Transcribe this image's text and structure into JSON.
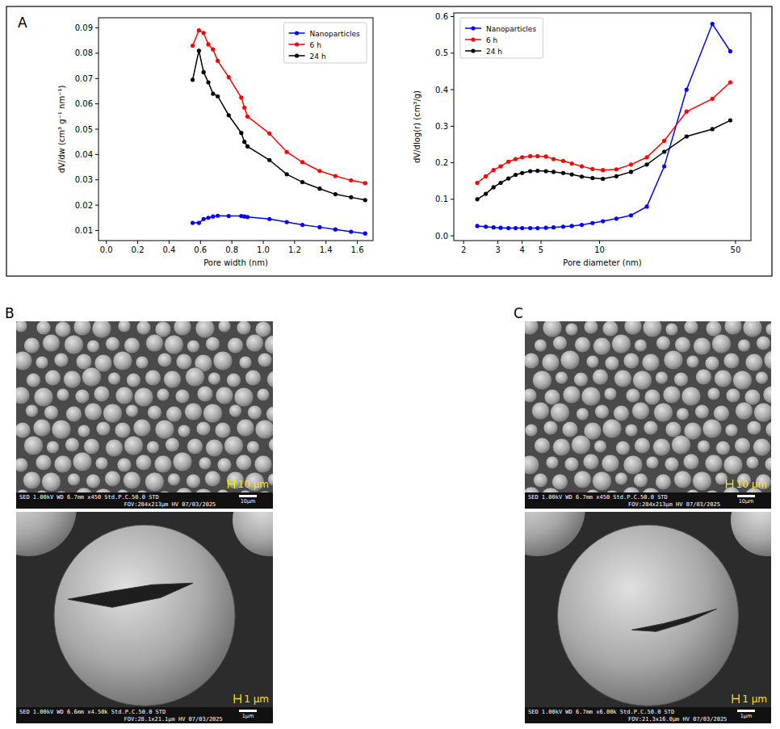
{
  "chart_data": [
    {
      "type": "line",
      "x_label": "Pore width (nm)",
      "y_label": "dV/dw (cm³ g⁻¹ nm⁻¹)",
      "x": [
        0.55,
        0.59,
        0.62,
        0.65,
        0.68,
        0.71,
        0.78,
        0.86,
        0.88,
        0.9,
        1.04,
        1.15,
        1.25,
        1.36,
        1.46,
        1.56,
        1.65
      ],
      "series": [
        {
          "name": "Nanoparticles",
          "color": "#0000ff",
          "marker": "circle",
          "values": [
            0.013,
            0.013,
            0.0145,
            0.015,
            0.0155,
            0.0158,
            0.0157,
            0.0157,
            0.0155,
            0.0153,
            0.0145,
            0.0133,
            0.0122,
            0.0113,
            0.0104,
            0.0095,
            0.0088
          ]
        },
        {
          "name": "6 h",
          "color": "#ff0000",
          "marker": "circle",
          "values": [
            0.083,
            0.089,
            0.088,
            0.0835,
            0.0815,
            0.077,
            0.0705,
            0.0625,
            0.0585,
            0.055,
            0.0483,
            0.041,
            0.037,
            0.0335,
            0.0315,
            0.0298,
            0.0287
          ]
        },
        {
          "name": "24 h",
          "color": "#000000",
          "marker": "circle",
          "values": [
            0.0695,
            0.081,
            0.0725,
            0.0685,
            0.064,
            0.063,
            0.0555,
            0.0485,
            0.045,
            0.0432,
            0.0378,
            0.0322,
            0.0291,
            0.0265,
            0.0243,
            0.0231,
            0.022
          ]
        }
      ],
      "xlim": [
        -0.05,
        1.7
      ],
      "xticks": [
        {
          "value": 0,
          "label": "0.0"
        },
        0.2,
        0.4,
        0.6,
        0.8,
        {
          "value": 1,
          "label": "1.0"
        },
        1.2,
        1.4,
        1.6
      ],
      "ylim": [
        0.006,
        0.094
      ],
      "yticks": [
        0.01,
        0.02,
        0.03,
        0.04,
        0.05,
        0.06,
        0.07,
        0.08,
        0.09
      ],
      "legend": "upper right",
      "grid": false
    },
    {
      "type": "line",
      "x_label": "Pore diameter (nm)",
      "y_label": "dV/dlog(r) (cm³/g)",
      "log": "x",
      "x": [
        2.35,
        2.6,
        2.85,
        3.1,
        3.4,
        3.7,
        4.0,
        4.4,
        4.8,
        5.3,
        5.8,
        6.5,
        7.2,
        8.1,
        9.2,
        10.4,
        12.2,
        14.5,
        17.5,
        21.5,
        28,
        38,
        47
      ],
      "series": [
        {
          "name": "Nanoparticles",
          "color": "#0000ff",
          "marker": "circle",
          "values": [
            0.027,
            0.025,
            0.023,
            0.022,
            0.021,
            0.021,
            0.021,
            0.021,
            0.021,
            0.022,
            0.023,
            0.025,
            0.027,
            0.03,
            0.035,
            0.04,
            0.047,
            0.056,
            0.08,
            0.19,
            0.4,
            0.58,
            0.505
          ]
        },
        {
          "name": "6 h",
          "color": "#ff0000",
          "marker": "circle",
          "values": [
            0.145,
            0.163,
            0.18,
            0.19,
            0.203,
            0.21,
            0.215,
            0.218,
            0.218,
            0.217,
            0.21,
            0.205,
            0.198,
            0.19,
            0.183,
            0.18,
            0.182,
            0.195,
            0.215,
            0.26,
            0.34,
            0.375,
            0.42
          ]
        },
        {
          "name": "24 h",
          "color": "#000000",
          "marker": "circle",
          "values": [
            0.1,
            0.115,
            0.133,
            0.145,
            0.157,
            0.167,
            0.172,
            0.177,
            0.178,
            0.177,
            0.175,
            0.172,
            0.168,
            0.162,
            0.158,
            0.156,
            0.163,
            0.175,
            0.195,
            0.23,
            0.272,
            0.292,
            0.316
          ]
        }
      ],
      "xlim": [
        1.78,
        60
      ],
      "xticks": [
        2,
        3,
        4,
        5,
        10,
        50
      ],
      "ylim": [
        -0.013,
        0.61
      ],
      "yticks": [
        {
          "value": 0,
          "label": "0.0"
        },
        0.1,
        0.2,
        0.3,
        0.4,
        0.5,
        0.6
      ],
      "legend": "upper left",
      "grid": false
    }
  ],
  "figure": {
    "panel_label": "A"
  },
  "micrographs": [
    {
      "panel_label": "B",
      "images": [
        {
          "scale_label": "10 µm",
          "info_top": "SED   1.00kV   WD 6.7mm   x450   Std.P.C.50.0   STD",
          "bar_label": "10µm",
          "info_bottom": "FOV:284x213µm   HV   07/03/2025"
        },
        {
          "scale_label": "1 µm",
          "info_top": "SED   1.00kV   WD 6.6mm   x4.50k   Std.P.C.50.0   STD",
          "bar_label": "1µm",
          "info_bottom": "FOV:28.1x21.1µm   HV   07/03/2025"
        }
      ]
    },
    {
      "panel_label": "C",
      "images": [
        {
          "scale_label": "10 µm",
          "info_top": "SED   1.00kV   WD 6.7mm   x450   Std.P.C.50.0   STD",
          "bar_label": "10µm",
          "info_bottom": "FOV:284x213µm   HV   07/03/2025"
        },
        {
          "scale_label": "1 µm",
          "info_top": "SED   1.00kV   WD 6.7mm   x6.00k   Std.P.C.50.0   STD",
          "bar_label": "1µm",
          "info_bottom": "FOV:21.3x16.0µm   HV   07/03/2025"
        }
      ]
    }
  ]
}
